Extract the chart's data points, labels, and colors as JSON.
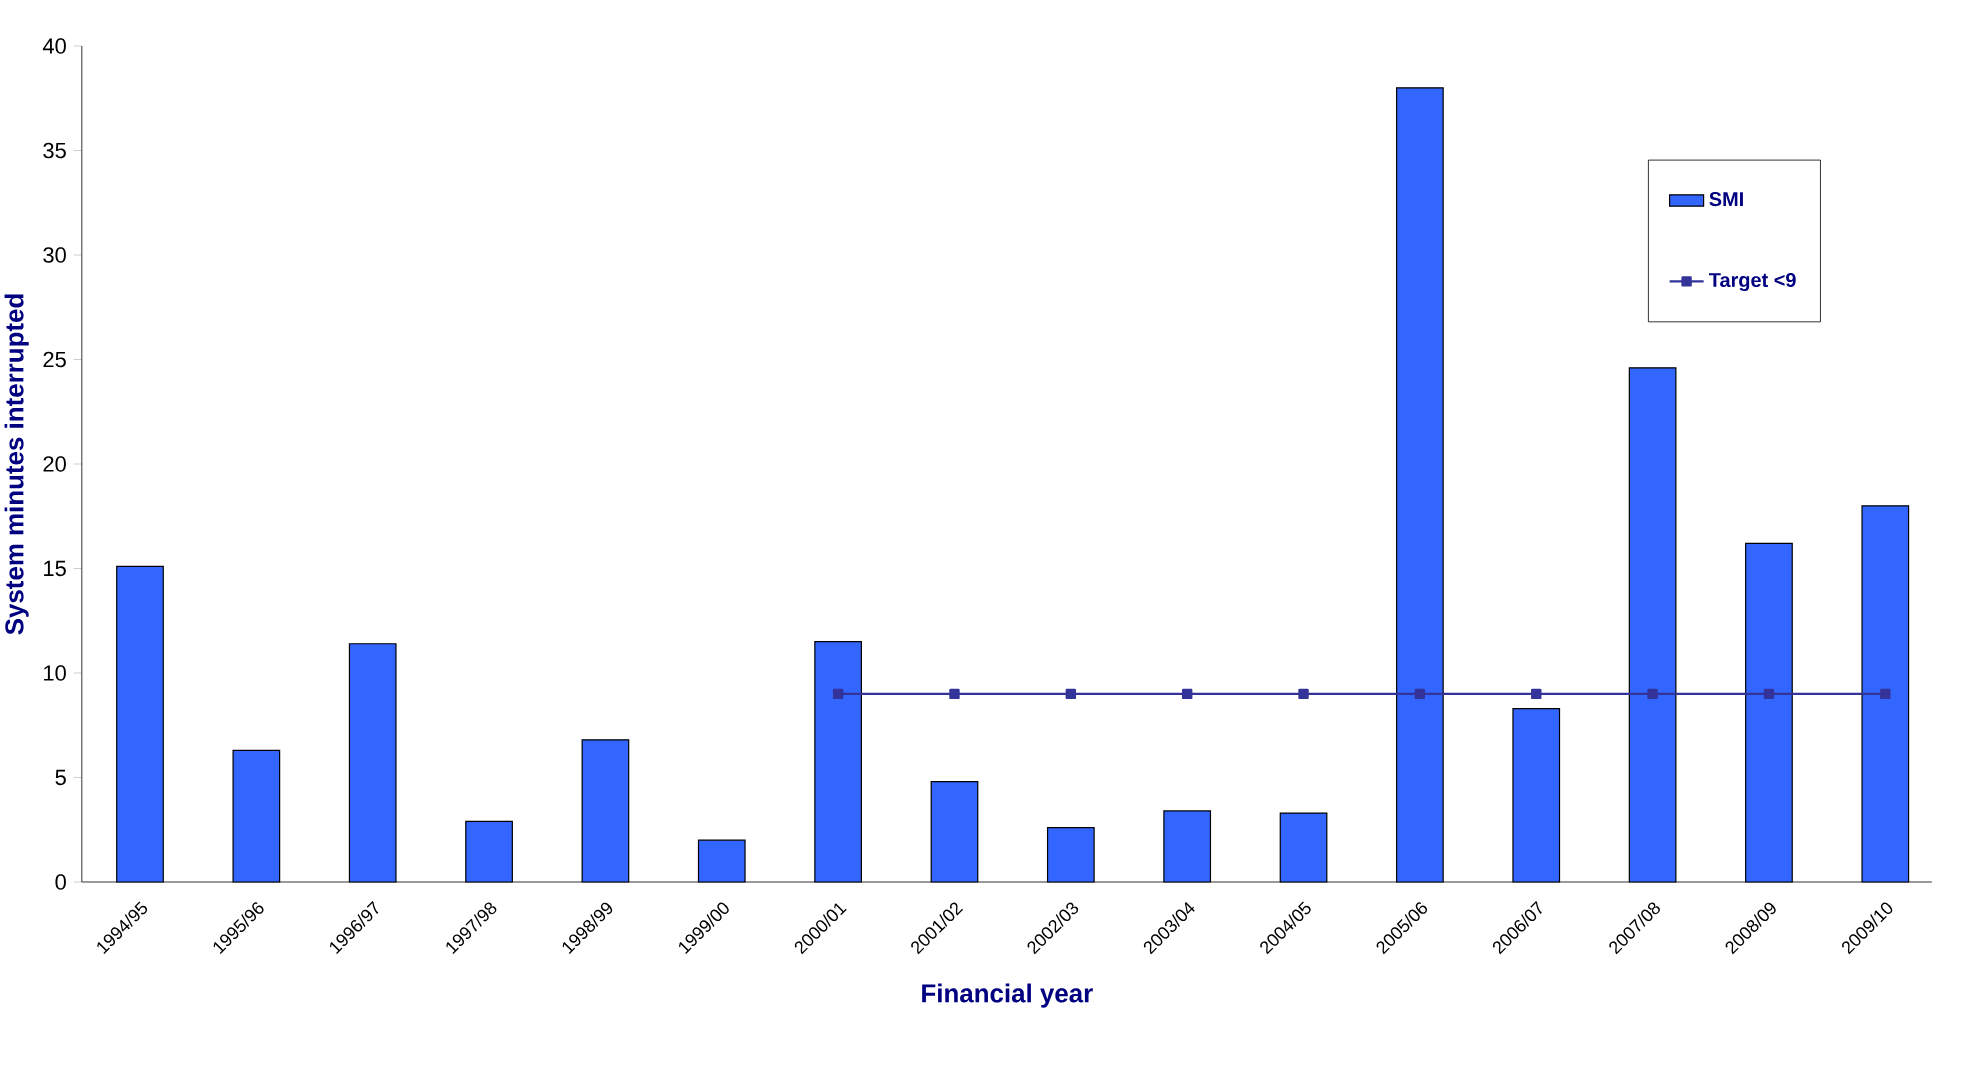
{
  "chart_data": {
    "type": "bar",
    "xlabel": "Financial year",
    "ylabel": "System minutes interrupted",
    "categories": [
      "1994/95",
      "1995/96",
      "1996/97",
      "1997/98",
      "1998/99",
      "1999/00",
      "2000/01",
      "2001/02",
      "2002/03",
      "2003/04",
      "2004/05",
      "2005/06",
      "2006/07",
      "2007/08",
      "2008/09",
      "2009/10"
    ],
    "series": [
      {
        "name": "SMI",
        "color": "#3366ff",
        "values": [
          15.1,
          6.3,
          11.4,
          2.9,
          6.8,
          2.0,
          11.5,
          4.8,
          2.6,
          3.4,
          3.3,
          38.0,
          8.3,
          24.6,
          16.2,
          18.0
        ]
      },
      {
        "name": "Target <9",
        "type": "line",
        "color": "#333399",
        "marker": "square",
        "values": [
          null,
          null,
          null,
          null,
          null,
          null,
          9,
          9,
          9,
          9,
          9,
          9,
          9,
          9,
          9,
          9
        ]
      }
    ],
    "ylim": [
      0,
      40
    ],
    "yticks": [
      0,
      5,
      10,
      15,
      20,
      25,
      30,
      35,
      40
    ],
    "legend": "top right",
    "grid": false
  }
}
